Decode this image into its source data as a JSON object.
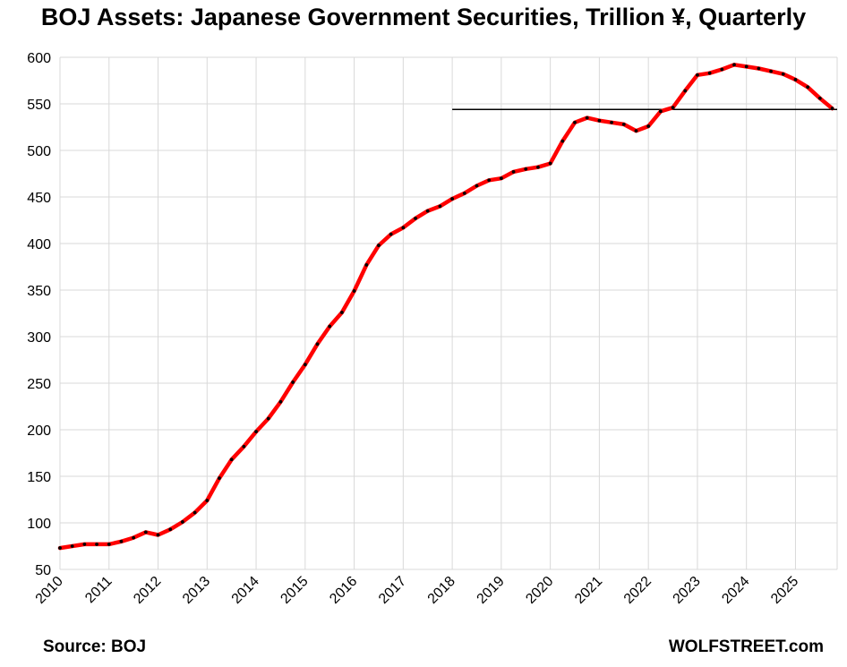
{
  "title": "BOJ Assets: Japanese Government Securities, Trillion ¥, Quarterly",
  "footer": {
    "source": "Source: BOJ",
    "brand": "WOLFSTREET.com"
  },
  "colors": {
    "line": "#ff0000",
    "markers": "#000000",
    "reference_line": "#000000",
    "grid": "#d9d9d9"
  },
  "chart_data": {
    "type": "line",
    "title": "BOJ Assets: Japanese Government Securities, Trillion ¥, Quarterly",
    "ylim": [
      50,
      600
    ],
    "xlim": [
      2010,
      2025.85
    ],
    "grid": true,
    "y_ticks": [
      "50",
      "100",
      "150",
      "200",
      "250",
      "300",
      "350",
      "400",
      "450",
      "500",
      "550",
      "600"
    ],
    "x_ticks": [
      "2010",
      "2011",
      "2012",
      "2013",
      "2014",
      "2015",
      "2016",
      "2017",
      "2018",
      "2019",
      "2020",
      "2021",
      "2022",
      "2023",
      "2024",
      "2025"
    ],
    "reference_line": {
      "y": 544,
      "x_start": 2018.0,
      "x_end": 2025.85
    },
    "series": [
      {
        "x": [
          2010.0,
          2010.25,
          2010.5,
          2010.75,
          2011.0,
          2011.25,
          2011.5,
          2011.75,
          2012.0,
          2012.25,
          2012.5,
          2012.75,
          2013.0,
          2013.25,
          2013.5,
          2013.75,
          2014.0,
          2014.25,
          2014.5,
          2014.75,
          2015.0,
          2015.25,
          2015.5,
          2015.75,
          2016.0,
          2016.25,
          2016.5,
          2016.75,
          2017.0,
          2017.25,
          2017.5,
          2017.75,
          2018.0,
          2018.25,
          2018.5,
          2018.75,
          2019.0,
          2019.25,
          2019.5,
          2019.75,
          2020.0,
          2020.25,
          2020.5,
          2020.75,
          2021.0,
          2021.25,
          2021.5,
          2021.75,
          2022.0,
          2022.25,
          2022.5,
          2022.75,
          2023.0,
          2023.25,
          2023.5,
          2023.75,
          2024.0,
          2024.25,
          2024.5,
          2024.75,
          2025.0,
          2025.25,
          2025.5,
          2025.75
        ],
        "values": [
          73,
          75,
          77,
          77,
          77,
          80,
          84,
          90,
          87,
          93,
          101,
          111,
          124,
          148,
          168,
          182,
          198,
          212,
          230,
          251,
          270,
          292,
          311,
          326,
          349,
          377,
          398,
          410,
          417,
          427,
          435,
          440,
          448,
          454,
          462,
          468,
          470,
          477,
          480,
          482,
          486,
          510,
          530,
          535,
          532,
          530,
          528,
          521,
          526,
          542,
          546,
          564,
          581,
          583,
          587,
          592,
          590,
          588,
          585,
          582,
          576,
          568,
          556,
          545
        ]
      }
    ]
  }
}
